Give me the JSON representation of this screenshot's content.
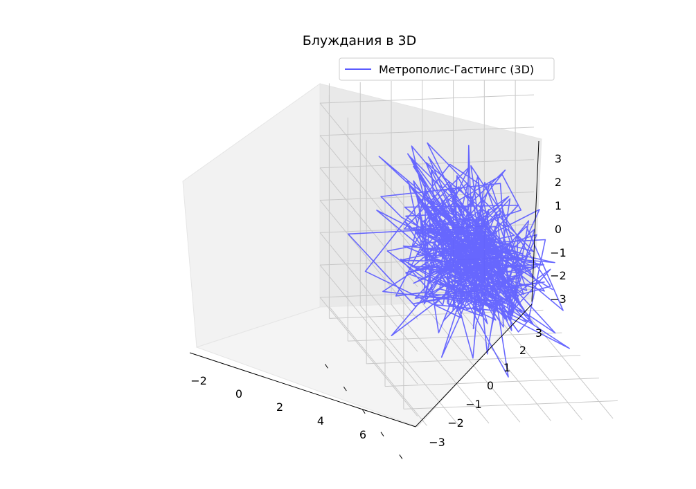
{
  "chart_data": {
    "type": "line",
    "projection": "3d",
    "title": "Блуждания в 3D",
    "xlabel": "",
    "ylabel": "",
    "zlabel": "",
    "xlim": [
      -3,
      7.5
    ],
    "ylim": [
      -3.3,
      3.6
    ],
    "zlim": [
      -3.3,
      3.6
    ],
    "x_ticks": [
      "−2",
      "0",
      "2",
      "4",
      "6"
    ],
    "y_ticks": [
      "−3",
      "−2",
      "−1",
      "0",
      "1",
      "2",
      "3"
    ],
    "z_ticks": [
      "−3",
      "−2",
      "−1",
      "0",
      "1",
      "2",
      "3"
    ],
    "grid": true,
    "legend_position": "top-right",
    "series": [
      {
        "name": "Метрополис-Гастингс (3D)",
        "color": "#5b5bff",
        "method": "metropolis-hastings random walk",
        "approx_points": 400,
        "x_range": [
          -2.5,
          7.0
        ],
        "y_range": [
          -3.0,
          3.0
        ],
        "z_range": [
          -3.0,
          3.0
        ]
      }
    ]
  }
}
